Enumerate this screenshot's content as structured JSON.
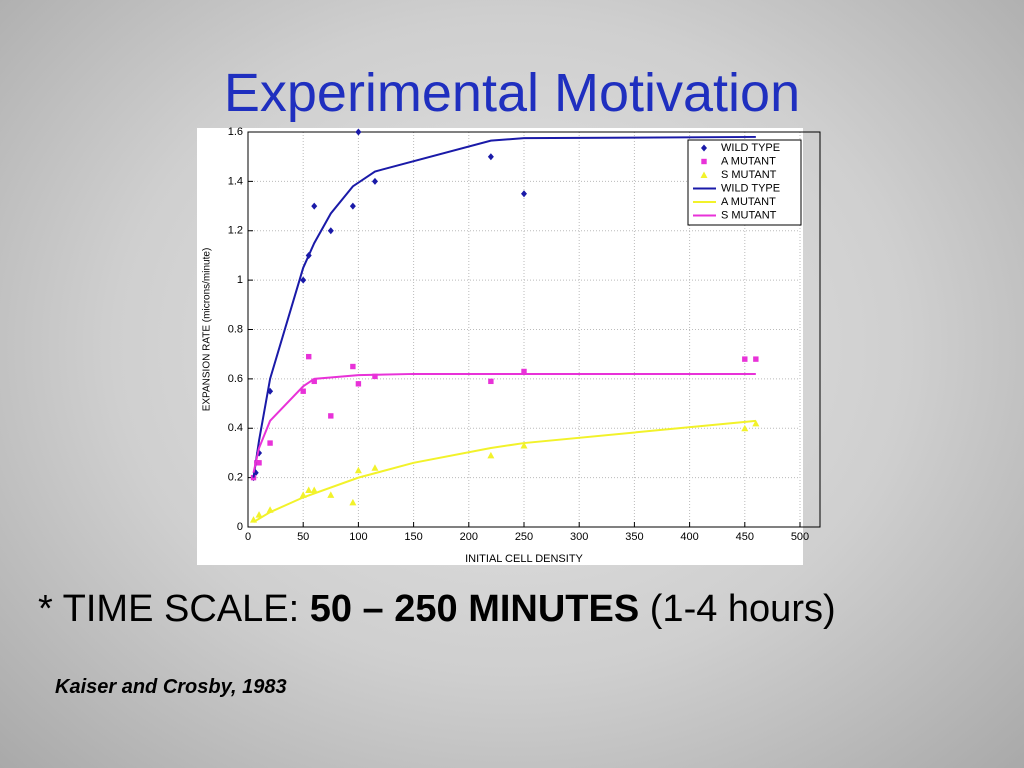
{
  "slide": {
    "title": "Experimental Motivation",
    "note": {
      "prefix": "* TIME SCALE:",
      "bold": "50 – 250 MINUTES",
      "suffix": "(1-4 hours)"
    },
    "citation": "Kaiser and Crosby, 1983"
  },
  "chart_data": {
    "type": "scatter",
    "x_label": "INITIAL CELL DENSITY",
    "y_label": "EXPANSION RATE (microns/minute)",
    "xlim": [
      0,
      500
    ],
    "xticks": [
      0,
      50,
      100,
      150,
      200,
      250,
      300,
      350,
      400,
      450,
      500
    ],
    "ylim": [
      0,
      1.6
    ],
    "yticks": [
      0,
      0.2,
      0.4,
      0.6,
      0.8,
      1,
      1.2,
      1.4,
      1.6
    ],
    "grid": true,
    "legend": "upper right",
    "series": [
      {
        "name": "WILD TYPE",
        "color": "#1a1aa8",
        "marker": "diamond",
        "x": [
          5,
          7,
          10,
          20,
          50,
          55,
          60,
          75,
          95,
          100,
          115,
          220,
          250
        ],
        "values": [
          0.2,
          0.22,
          0.3,
          0.55,
          1.0,
          1.1,
          1.3,
          1.2,
          1.3,
          1.6,
          1.4,
          1.5,
          1.35
        ]
      },
      {
        "name": "A MUTANT",
        "color": "#e832d8",
        "marker": "square",
        "x": [
          5,
          8,
          10,
          20,
          50,
          55,
          60,
          75,
          95,
          100,
          115,
          220,
          250,
          450,
          460
        ],
        "values": [
          0.2,
          0.26,
          0.26,
          0.34,
          0.55,
          0.69,
          0.59,
          0.45,
          0.65,
          0.58,
          0.61,
          0.59,
          0.63,
          0.68,
          0.68
        ]
      },
      {
        "name": "S MUTANT",
        "color": "#f2f22a",
        "marker": "triangle",
        "x": [
          5,
          10,
          20,
          50,
          55,
          60,
          75,
          95,
          100,
          115,
          220,
          250,
          450,
          460
        ],
        "values": [
          0.03,
          0.05,
          0.07,
          0.13,
          0.15,
          0.15,
          0.13,
          0.1,
          0.23,
          0.24,
          0.29,
          0.33,
          0.4,
          0.42
        ]
      },
      {
        "name": "WILD TYPE",
        "color": "#1a1aa8",
        "marker": "line",
        "x": [
          5,
          10,
          20,
          50,
          60,
          75,
          95,
          115,
          220,
          250,
          460
        ],
        "values": [
          0.2,
          0.35,
          0.6,
          1.05,
          1.15,
          1.27,
          1.38,
          1.44,
          1.565,
          1.575,
          1.58
        ]
      },
      {
        "name": "A MUTANT",
        "color": "#f2f22a",
        "marker": "line",
        "x": [
          5,
          20,
          50,
          100,
          150,
          220,
          250,
          460
        ],
        "values": [
          0.02,
          0.06,
          0.12,
          0.2,
          0.26,
          0.32,
          0.34,
          0.43
        ]
      },
      {
        "name": "S MUTANT",
        "color": "#e832d8",
        "marker": "line",
        "x": [
          5,
          10,
          20,
          50,
          60,
          100,
          150,
          460
        ],
        "values": [
          0.22,
          0.32,
          0.43,
          0.57,
          0.6,
          0.615,
          0.62,
          0.62
        ]
      }
    ]
  }
}
